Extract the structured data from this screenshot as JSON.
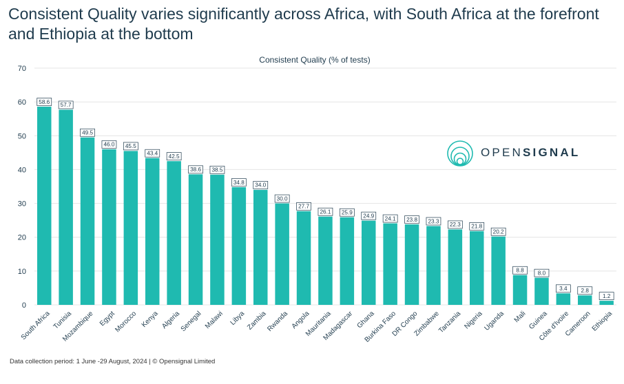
{
  "header": {
    "title": "Consistent Quality varies significantly across Africa, with South Africa at the forefront and Ethiopia at the bottom"
  },
  "footer": {
    "text": "Data collection period: 1 June -29 August, 2024 | © Opensignal Limited"
  },
  "logo": {
    "text_light": "OPEN",
    "text_bold": "SIGNAL"
  },
  "colors": {
    "bar": "#1fbab0",
    "label_border": "#1f3b4d",
    "text": "#1f3b4d",
    "grid": "#e4e4e4"
  },
  "chart_data": {
    "type": "bar",
    "title": "Consistent Quality (% of tests)",
    "xlabel": "",
    "ylabel": "",
    "ylim": [
      0,
      70
    ],
    "yticks": [
      "0",
      "10",
      "20",
      "30",
      "40",
      "50",
      "60",
      "70"
    ],
    "grid": true,
    "categories": [
      "South Africa",
      "Tunisia",
      "Mozambique",
      "Egypt",
      "Morocco",
      "Kenya",
      "Algeria",
      "Senegal",
      "Malawi",
      "Libya",
      "Zambia",
      "Rwanda",
      "Angola",
      "Mauritania",
      "Madagascar",
      "Ghana",
      "Burkina Faso",
      "DR Congo",
      "Zimbabwe",
      "Tanzania",
      "Nigeria",
      "Uganda",
      "Mali",
      "Guinea",
      "Côte d'Ivoire",
      "Cameroon",
      "Ethiopia"
    ],
    "values": [
      58.6,
      57.7,
      49.5,
      46.0,
      45.5,
      43.4,
      42.5,
      38.6,
      38.5,
      34.8,
      34.0,
      30.0,
      27.7,
      26.1,
      25.9,
      24.9,
      24.1,
      23.8,
      23.3,
      22.3,
      21.8,
      20.2,
      8.8,
      8.0,
      3.4,
      2.8,
      1.2
    ],
    "labels": [
      "58.6",
      "57.7",
      "49.5",
      "46.0",
      "45.5",
      "43.4",
      "42.5",
      "38.6",
      "38.5",
      "34.8",
      "34.0",
      "30.0",
      "27.7",
      "26.1",
      "25.9",
      "24.9",
      "24.1",
      "23.8",
      "23.3",
      "22.3",
      "21.8",
      "20.2",
      "8.8",
      "8.0",
      "3.4",
      "2.8",
      "1.2"
    ]
  }
}
